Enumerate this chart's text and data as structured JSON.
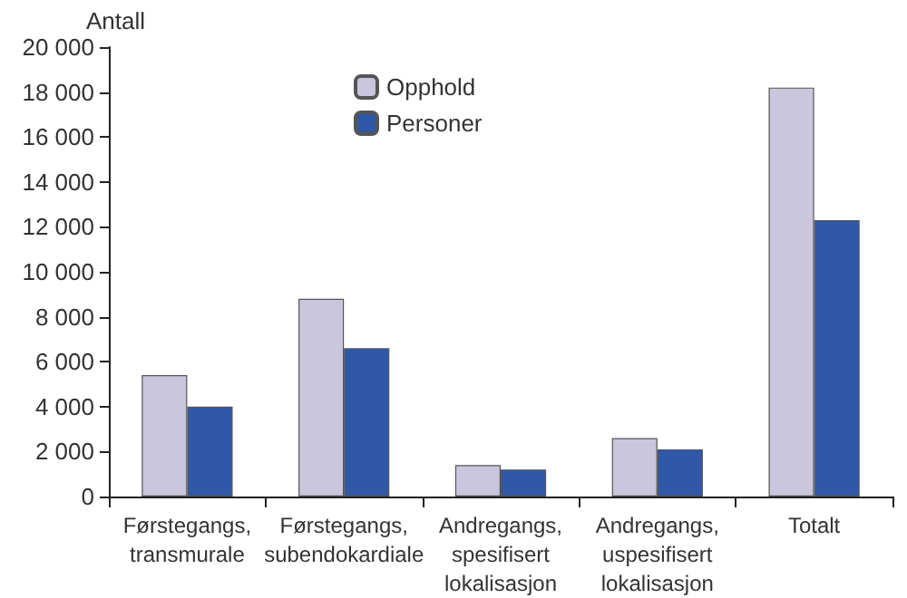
{
  "chart_data": {
    "type": "bar",
    "ylabel": "Antall",
    "categories": [
      "Førstegangs,\ntransmurale",
      "Førstegangs,\nsubendokardiale",
      "Andregangs,\nspesifisert\nlokalisasjon",
      "Andregangs,\nuspesifisert\nlokalisasjon",
      "Totalt"
    ],
    "series": [
      {
        "name": "Opphold",
        "color": "#c9c6dd",
        "values": [
          5400,
          8800,
          1400,
          2600,
          18200
        ]
      },
      {
        "name": "Personer",
        "color": "#2f58a8",
        "values": [
          4000,
          6600,
          1200,
          2100,
          12300
        ]
      }
    ],
    "ylim": [
      0,
      20000
    ],
    "yticks": [
      0,
      {
        "value": 2000,
        "label": "2 000"
      },
      {
        "value": 4000,
        "label": "4 000"
      },
      {
        "value": 6000,
        "label": "6 000"
      },
      {
        "value": 8000,
        "label": "8 000"
      },
      {
        "value": 10000,
        "label": "10 000"
      },
      {
        "value": 12000,
        "label": "12 000"
      },
      {
        "value": 14000,
        "label": "14 000"
      },
      {
        "value": 16000,
        "label": "16 000"
      },
      {
        "value": 18000,
        "label": "18 000"
      },
      {
        "value": 20000,
        "label": "20 000"
      }
    ],
    "grid": false,
    "legend": "top"
  }
}
